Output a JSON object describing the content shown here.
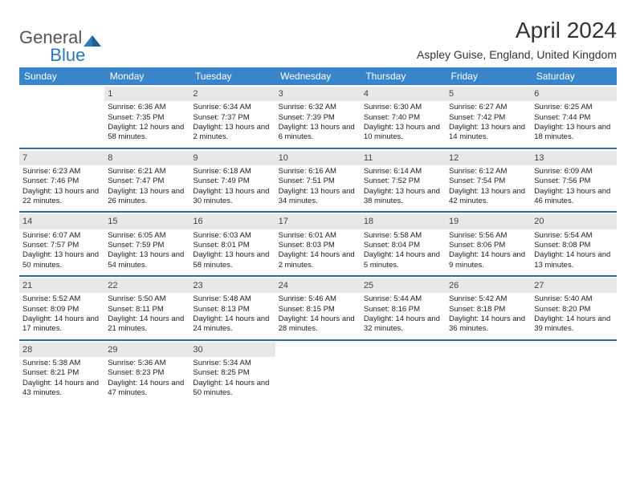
{
  "brand": {
    "part1": "General",
    "part2": "Blue"
  },
  "title": "April 2024",
  "subtitle": "Aspley Guise, England, United Kingdom",
  "colors": {
    "header_bg": "#3a85c9",
    "header_text": "#ffffff",
    "daynum_bg": "#e8e8e8",
    "rule": "#3a6a9a",
    "brand_blue": "#2a7ab8",
    "text": "#222222"
  },
  "dayNames": [
    "Sunday",
    "Monday",
    "Tuesday",
    "Wednesday",
    "Thursday",
    "Friday",
    "Saturday"
  ],
  "weeks": [
    [
      {
        "n": "",
        "sr": "",
        "ss": "",
        "dl": ""
      },
      {
        "n": "1",
        "sr": "Sunrise: 6:36 AM",
        "ss": "Sunset: 7:35 PM",
        "dl": "Daylight: 12 hours and 58 minutes."
      },
      {
        "n": "2",
        "sr": "Sunrise: 6:34 AM",
        "ss": "Sunset: 7:37 PM",
        "dl": "Daylight: 13 hours and 2 minutes."
      },
      {
        "n": "3",
        "sr": "Sunrise: 6:32 AM",
        "ss": "Sunset: 7:39 PM",
        "dl": "Daylight: 13 hours and 6 minutes."
      },
      {
        "n": "4",
        "sr": "Sunrise: 6:30 AM",
        "ss": "Sunset: 7:40 PM",
        "dl": "Daylight: 13 hours and 10 minutes."
      },
      {
        "n": "5",
        "sr": "Sunrise: 6:27 AM",
        "ss": "Sunset: 7:42 PM",
        "dl": "Daylight: 13 hours and 14 minutes."
      },
      {
        "n": "6",
        "sr": "Sunrise: 6:25 AM",
        "ss": "Sunset: 7:44 PM",
        "dl": "Daylight: 13 hours and 18 minutes."
      }
    ],
    [
      {
        "n": "7",
        "sr": "Sunrise: 6:23 AM",
        "ss": "Sunset: 7:46 PM",
        "dl": "Daylight: 13 hours and 22 minutes."
      },
      {
        "n": "8",
        "sr": "Sunrise: 6:21 AM",
        "ss": "Sunset: 7:47 PM",
        "dl": "Daylight: 13 hours and 26 minutes."
      },
      {
        "n": "9",
        "sr": "Sunrise: 6:18 AM",
        "ss": "Sunset: 7:49 PM",
        "dl": "Daylight: 13 hours and 30 minutes."
      },
      {
        "n": "10",
        "sr": "Sunrise: 6:16 AM",
        "ss": "Sunset: 7:51 PM",
        "dl": "Daylight: 13 hours and 34 minutes."
      },
      {
        "n": "11",
        "sr": "Sunrise: 6:14 AM",
        "ss": "Sunset: 7:52 PM",
        "dl": "Daylight: 13 hours and 38 minutes."
      },
      {
        "n": "12",
        "sr": "Sunrise: 6:12 AM",
        "ss": "Sunset: 7:54 PM",
        "dl": "Daylight: 13 hours and 42 minutes."
      },
      {
        "n": "13",
        "sr": "Sunrise: 6:09 AM",
        "ss": "Sunset: 7:56 PM",
        "dl": "Daylight: 13 hours and 46 minutes."
      }
    ],
    [
      {
        "n": "14",
        "sr": "Sunrise: 6:07 AM",
        "ss": "Sunset: 7:57 PM",
        "dl": "Daylight: 13 hours and 50 minutes."
      },
      {
        "n": "15",
        "sr": "Sunrise: 6:05 AM",
        "ss": "Sunset: 7:59 PM",
        "dl": "Daylight: 13 hours and 54 minutes."
      },
      {
        "n": "16",
        "sr": "Sunrise: 6:03 AM",
        "ss": "Sunset: 8:01 PM",
        "dl": "Daylight: 13 hours and 58 minutes."
      },
      {
        "n": "17",
        "sr": "Sunrise: 6:01 AM",
        "ss": "Sunset: 8:03 PM",
        "dl": "Daylight: 14 hours and 2 minutes."
      },
      {
        "n": "18",
        "sr": "Sunrise: 5:58 AM",
        "ss": "Sunset: 8:04 PM",
        "dl": "Daylight: 14 hours and 5 minutes."
      },
      {
        "n": "19",
        "sr": "Sunrise: 5:56 AM",
        "ss": "Sunset: 8:06 PM",
        "dl": "Daylight: 14 hours and 9 minutes."
      },
      {
        "n": "20",
        "sr": "Sunrise: 5:54 AM",
        "ss": "Sunset: 8:08 PM",
        "dl": "Daylight: 14 hours and 13 minutes."
      }
    ],
    [
      {
        "n": "21",
        "sr": "Sunrise: 5:52 AM",
        "ss": "Sunset: 8:09 PM",
        "dl": "Daylight: 14 hours and 17 minutes."
      },
      {
        "n": "22",
        "sr": "Sunrise: 5:50 AM",
        "ss": "Sunset: 8:11 PM",
        "dl": "Daylight: 14 hours and 21 minutes."
      },
      {
        "n": "23",
        "sr": "Sunrise: 5:48 AM",
        "ss": "Sunset: 8:13 PM",
        "dl": "Daylight: 14 hours and 24 minutes."
      },
      {
        "n": "24",
        "sr": "Sunrise: 5:46 AM",
        "ss": "Sunset: 8:15 PM",
        "dl": "Daylight: 14 hours and 28 minutes."
      },
      {
        "n": "25",
        "sr": "Sunrise: 5:44 AM",
        "ss": "Sunset: 8:16 PM",
        "dl": "Daylight: 14 hours and 32 minutes."
      },
      {
        "n": "26",
        "sr": "Sunrise: 5:42 AM",
        "ss": "Sunset: 8:18 PM",
        "dl": "Daylight: 14 hours and 36 minutes."
      },
      {
        "n": "27",
        "sr": "Sunrise: 5:40 AM",
        "ss": "Sunset: 8:20 PM",
        "dl": "Daylight: 14 hours and 39 minutes."
      }
    ],
    [
      {
        "n": "28",
        "sr": "Sunrise: 5:38 AM",
        "ss": "Sunset: 8:21 PM",
        "dl": "Daylight: 14 hours and 43 minutes."
      },
      {
        "n": "29",
        "sr": "Sunrise: 5:36 AM",
        "ss": "Sunset: 8:23 PM",
        "dl": "Daylight: 14 hours and 47 minutes."
      },
      {
        "n": "30",
        "sr": "Sunrise: 5:34 AM",
        "ss": "Sunset: 8:25 PM",
        "dl": "Daylight: 14 hours and 50 minutes."
      },
      {
        "n": "",
        "sr": "",
        "ss": "",
        "dl": ""
      },
      {
        "n": "",
        "sr": "",
        "ss": "",
        "dl": ""
      },
      {
        "n": "",
        "sr": "",
        "ss": "",
        "dl": ""
      },
      {
        "n": "",
        "sr": "",
        "ss": "",
        "dl": ""
      }
    ]
  ]
}
